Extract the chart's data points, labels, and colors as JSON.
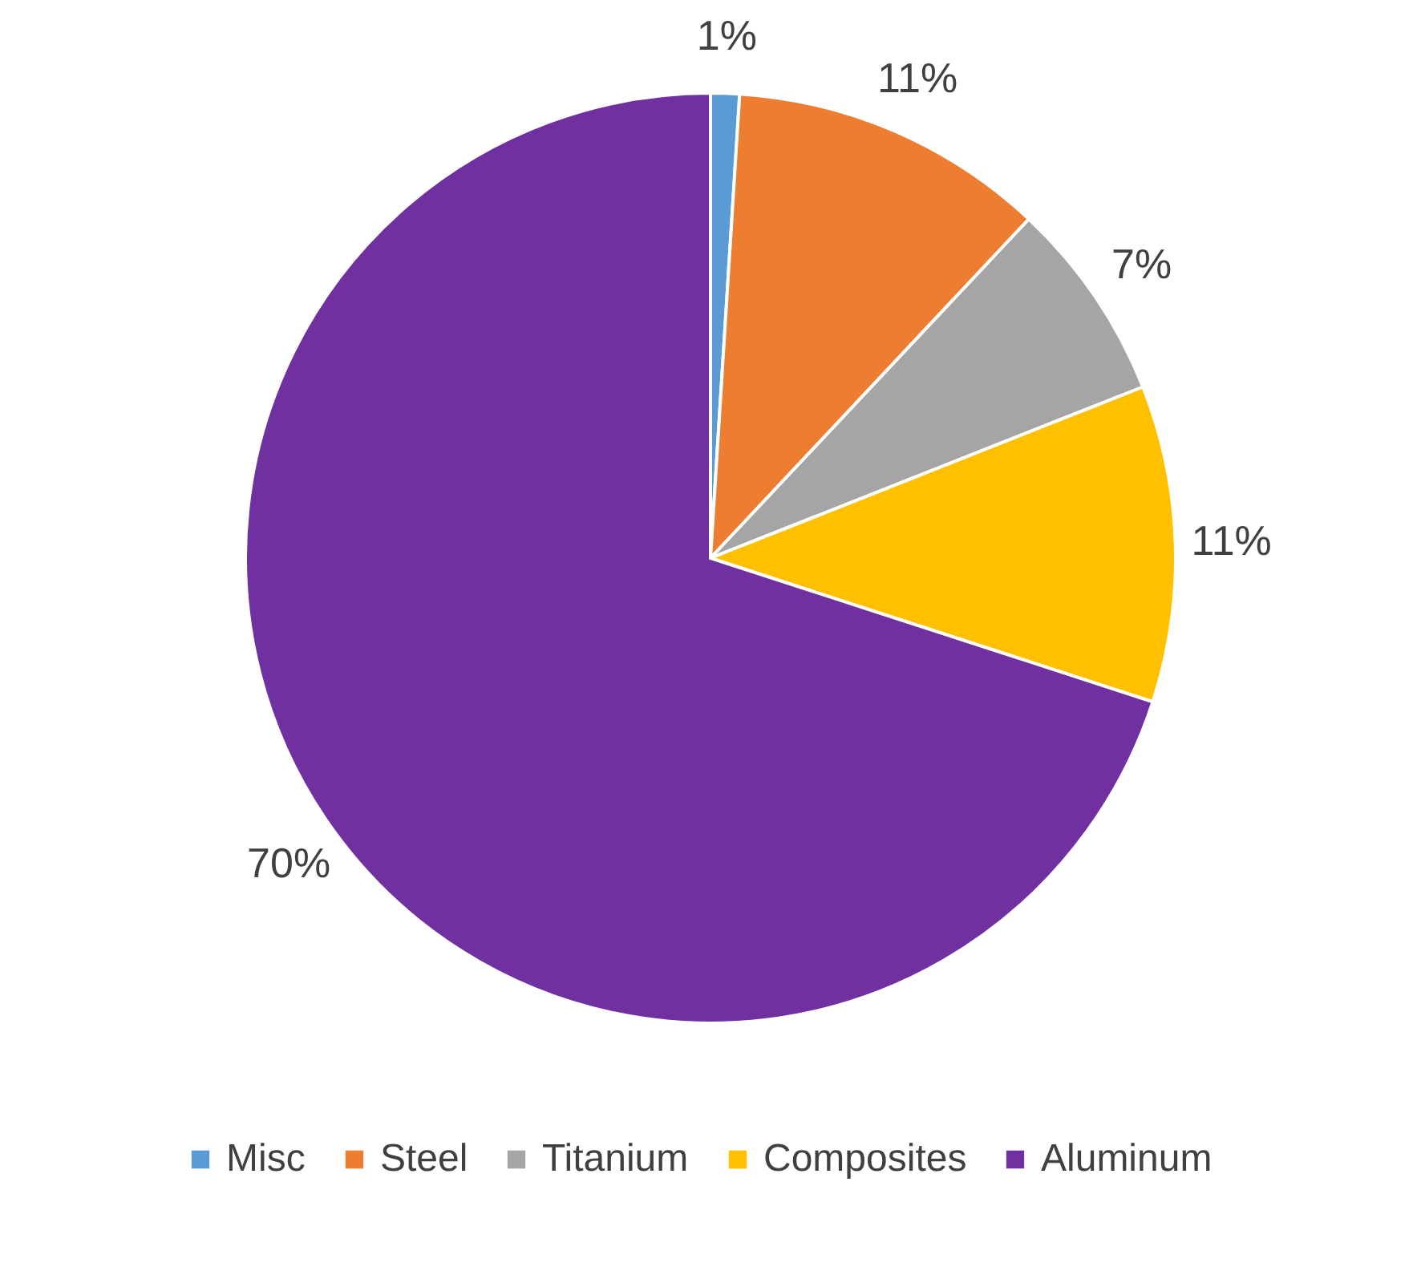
{
  "chart_data": {
    "type": "pie",
    "categories": [
      "Misc",
      "Steel",
      "Titanium",
      "Composites",
      "Aluminum"
    ],
    "values": [
      1,
      11,
      7,
      11,
      70
    ],
    "colors": [
      "#5b9bd5",
      "#ed7d31",
      "#a5a5a5",
      "#ffc000",
      "#7030a0"
    ],
    "value_labels": [
      "1%",
      "11%",
      "7%",
      "11%",
      "70%"
    ],
    "legend": "bottom"
  }
}
